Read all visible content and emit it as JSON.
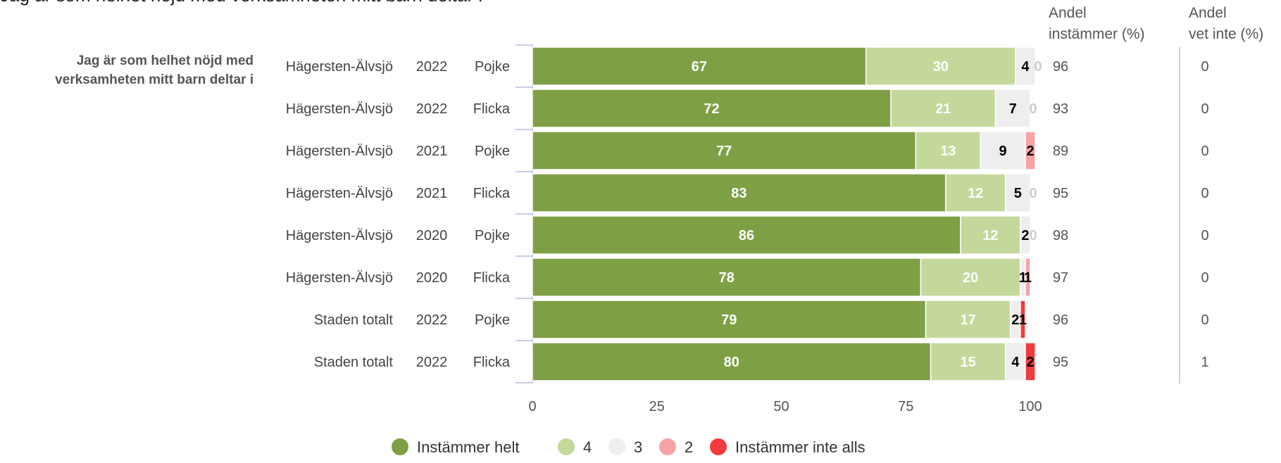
{
  "title": "Jag är som helhet nöjd med verksamheten mitt barn deltar i",
  "question_label": [
    "Jag är som helhet nöjd med",
    "verksamheten mitt barn deltar i"
  ],
  "column_headers": {
    "instammer": "Andel\ninstämmer (%)",
    "vet_inte": "Andel\nvet inte (%)"
  },
  "colors": {
    "Instämmer helt": "#7f9f45",
    "4": "#c4d89b",
    "3": "#eeeeee",
    "2": "#f7a3a6",
    "Instämmer inte alls": "#f23b3c"
  },
  "chart_data": {
    "type": "bar",
    "orientation": "horizontal",
    "stacked": true,
    "title": "Jag är som helhet nöjd med verksamheten mitt barn deltar i",
    "rows": [
      {
        "area": "Hägersten-Älvsjö",
        "year": "2022",
        "gender": "Pojke"
      },
      {
        "area": "Hägersten-Älvsjö",
        "year": "2022",
        "gender": "Flicka"
      },
      {
        "area": "Hägersten-Älvsjö",
        "year": "2021",
        "gender": "Pojke"
      },
      {
        "area": "Hägersten-Älvsjö",
        "year": "2021",
        "gender": "Flicka"
      },
      {
        "area": "Hägersten-Älvsjö",
        "year": "2020",
        "gender": "Pojke"
      },
      {
        "area": "Hägersten-Älvsjö",
        "year": "2020",
        "gender": "Flicka"
      },
      {
        "area": "Staden totalt",
        "year": "2022",
        "gender": "Pojke"
      },
      {
        "area": "Staden totalt",
        "year": "2022",
        "gender": "Flicka"
      }
    ],
    "series": [
      {
        "name": "Instämmer helt",
        "values": [
          67,
          72,
          77,
          83,
          86,
          78,
          79,
          80
        ]
      },
      {
        "name": "4",
        "values": [
          30,
          21,
          13,
          12,
          12,
          20,
          17,
          15
        ]
      },
      {
        "name": "3",
        "values": [
          4,
          7,
          9,
          5,
          2,
          1,
          2,
          4
        ]
      },
      {
        "name": "2",
        "values": [
          0,
          0,
          2,
          0,
          0,
          1,
          0,
          0
        ]
      },
      {
        "name": "Instämmer inte alls",
        "values": [
          0,
          0,
          0,
          0,
          0,
          0,
          1,
          2
        ]
      }
    ],
    "segment_labels": [
      [
        "67",
        "30",
        "4",
        "0",
        ""
      ],
      [
        "72",
        "21",
        "7",
        "0",
        ""
      ],
      [
        "77",
        "13",
        "9",
        "2",
        ""
      ],
      [
        "83",
        "12",
        "5",
        "0",
        ""
      ],
      [
        "86",
        "12",
        "2",
        "0",
        ""
      ],
      [
        "78",
        "20",
        "1",
        "1",
        ""
      ],
      [
        "79",
        "17",
        "2",
        "0",
        "1"
      ],
      [
        "80",
        "15",
        "4",
        "0",
        "2"
      ]
    ],
    "andel_instammer": [
      96,
      93,
      89,
      95,
      98,
      97,
      96,
      95
    ],
    "andel_vet_inte": [
      0,
      0,
      0,
      0,
      0,
      0,
      0,
      1
    ],
    "xticks": [
      0,
      25,
      50,
      75,
      100
    ],
    "xlim": [
      0,
      100
    ],
    "legend_position": "bottom"
  }
}
